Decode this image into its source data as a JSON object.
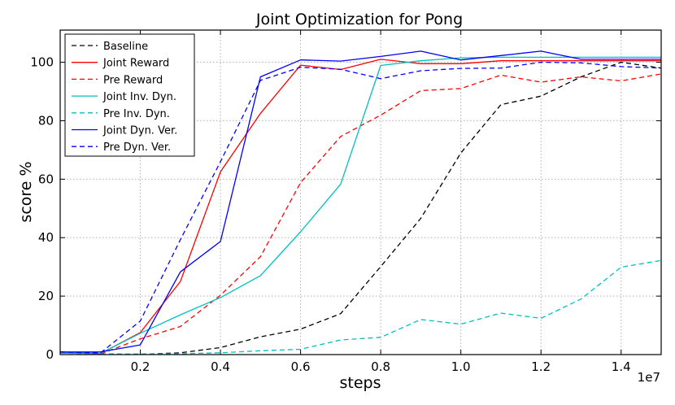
{
  "chart_data": {
    "type": "line",
    "title": "Joint Optimization for Pong",
    "xlabel": "steps",
    "ylabel": "score %",
    "x_offset_label": "1e7",
    "xlim": [
      0,
      15000000
    ],
    "ylim": [
      0,
      111
    ],
    "grid": true,
    "legend_position": "top-left",
    "x_ticks": [
      2000000,
      4000000,
      6000000,
      8000000,
      10000000,
      12000000,
      14000000
    ],
    "x_tick_labels": [
      "0.2",
      "0.4",
      "0.6",
      "0.8",
      "1.0",
      "1.2",
      "1.4"
    ],
    "y_ticks": [
      0,
      20,
      40,
      60,
      80,
      100
    ],
    "y_tick_labels": [
      "0",
      "20",
      "40",
      "60",
      "80",
      "100"
    ],
    "x": [
      0,
      1000000,
      2000000,
      3000000,
      4000000,
      5000000,
      6000000,
      7000000,
      8000000,
      9000000,
      10000000,
      11000000,
      12000000,
      13000000,
      14000000,
      15000000
    ],
    "series": [
      {
        "name": "Baseline",
        "color": "#000000",
        "dashed": true,
        "values": [
          0.8,
          0.2,
          0.1,
          0.6,
          2.4,
          6.1,
          8.7,
          14.0,
          30.1,
          46.6,
          69.0,
          85.5,
          88.4,
          95.0,
          100.0,
          98.0
        ]
      },
      {
        "name": "Joint Reward",
        "color": "#ff0000",
        "dashed": false,
        "values": [
          0.6,
          0.3,
          7.5,
          25.0,
          62.5,
          82.5,
          99.0,
          97.5,
          101.0,
          99.5,
          99.5,
          100.5,
          100.5,
          100.5,
          100.5,
          100.5
        ]
      },
      {
        "name": "Pre Reward",
        "color": "#ff0000",
        "dashed": true,
        "values": [
          1.0,
          0.2,
          5.4,
          9.6,
          20.3,
          33.5,
          58.8,
          74.6,
          81.9,
          90.3,
          91.0,
          95.6,
          93.2,
          95.0,
          93.6,
          96.0
        ]
      },
      {
        "name": "Joint Inv. Dyn.",
        "color": "#00bfbf",
        "dashed": false,
        "values": [
          0.8,
          0.4,
          7.3,
          13.6,
          19.5,
          27.0,
          42.0,
          58.3,
          98.9,
          100.5,
          101.5,
          101.7,
          101.7,
          101.7,
          101.7,
          101.7
        ]
      },
      {
        "name": "Pre Inv. Dyn.",
        "color": "#00bfbf",
        "dashed": true,
        "values": [
          0.5,
          0.1,
          0.2,
          0.3,
          0.6,
          1.3,
          1.8,
          5.0,
          5.9,
          12.0,
          10.4,
          14.2,
          12.4,
          19.0,
          29.9,
          32.2
        ]
      },
      {
        "name": "Joint Dyn. Ver.",
        "color": "#0000ff",
        "dashed": false,
        "values": [
          0.9,
          0.9,
          3.3,
          28.3,
          38.7,
          95.0,
          100.8,
          100.4,
          102.0,
          103.8,
          100.8,
          102.3,
          103.8,
          101.0,
          101.0,
          101.0
        ]
      },
      {
        "name": "Pre Dyn. Ver.",
        "color": "#0000ff",
        "dashed": true,
        "values": [
          0.9,
          0.5,
          11.5,
          39.3,
          66.0,
          93.8,
          98.3,
          97.6,
          94.4,
          97.1,
          97.9,
          98.0,
          100.0,
          99.8,
          98.5,
          98.0
        ]
      }
    ]
  }
}
